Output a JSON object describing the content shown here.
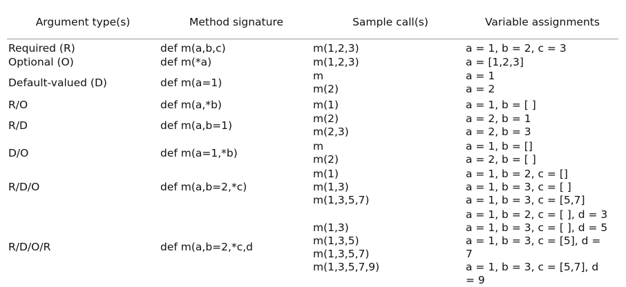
{
  "headers": [
    "Argument type(s)",
    "Method signature",
    "Sample call(s)",
    "Variable assignments"
  ],
  "rows": [
    {
      "type": "Required (R)",
      "signature": "def m(a,b,c)",
      "calls": [
        "m(1,2,3)"
      ],
      "assignments": [
        "a = 1, b = 2, c = 3"
      ]
    },
    {
      "type": "Optional (O)",
      "signature": "def m(*a)",
      "calls": [
        "m(1,2,3)"
      ],
      "assignments": [
        "a = [1,2,3]"
      ]
    },
    {
      "type": "Default-valued (D)",
      "signature": "def m(a=1)",
      "calls": [
        "m",
        "m(2)"
      ],
      "assignments": [
        "a = 1",
        "a = 2"
      ]
    },
    {
      "type": "R/O",
      "signature": "def m(a,*b)",
      "calls": [
        "m(1)"
      ],
      "assignments": [
        "a = 1, b = [ ]"
      ]
    },
    {
      "type": "R/D",
      "signature": "def m(a,b=1)",
      "calls": [
        "m(2)",
        "m(2,3)"
      ],
      "assignments": [
        "a = 2, b = 1",
        "a = 2, b = 3"
      ]
    },
    {
      "type": "D/O",
      "signature": "def m(a=1,*b)",
      "calls": [
        "m",
        "m(2)"
      ],
      "assignments": [
        "a = 1, b = []",
        "a = 2, b = [ ]"
      ]
    },
    {
      "type": "R/D/O",
      "signature": "def m(a,b=2,*c)",
      "calls": [
        "m(1)",
        "m(1,3)",
        "m(1,3,5,7)"
      ],
      "assignments": [
        "a = 1, b = 2, c = []",
        "a = 1, b = 3, c = [ ]",
        "a = 1, b = 3, c = [5,7]"
      ]
    },
    {
      "type": "R/D/O/R",
      "signature": "def m(a,b=2,*c,d",
      "calls": [
        "m(1,3)",
        "m(1,3,5)",
        "m(1,3,5,7)",
        "m(1,3,5,7,9)"
      ],
      "assignments": [
        "a = 1, b = 2, c = [ ], d = 3",
        "a = 1, b = 3, c = [ ], d = 5",
        "a = 1, b = 3, c = [5], d =",
        "7",
        "a = 1, b = 3, c = [5,7], d",
        "= 9"
      ]
    }
  ]
}
